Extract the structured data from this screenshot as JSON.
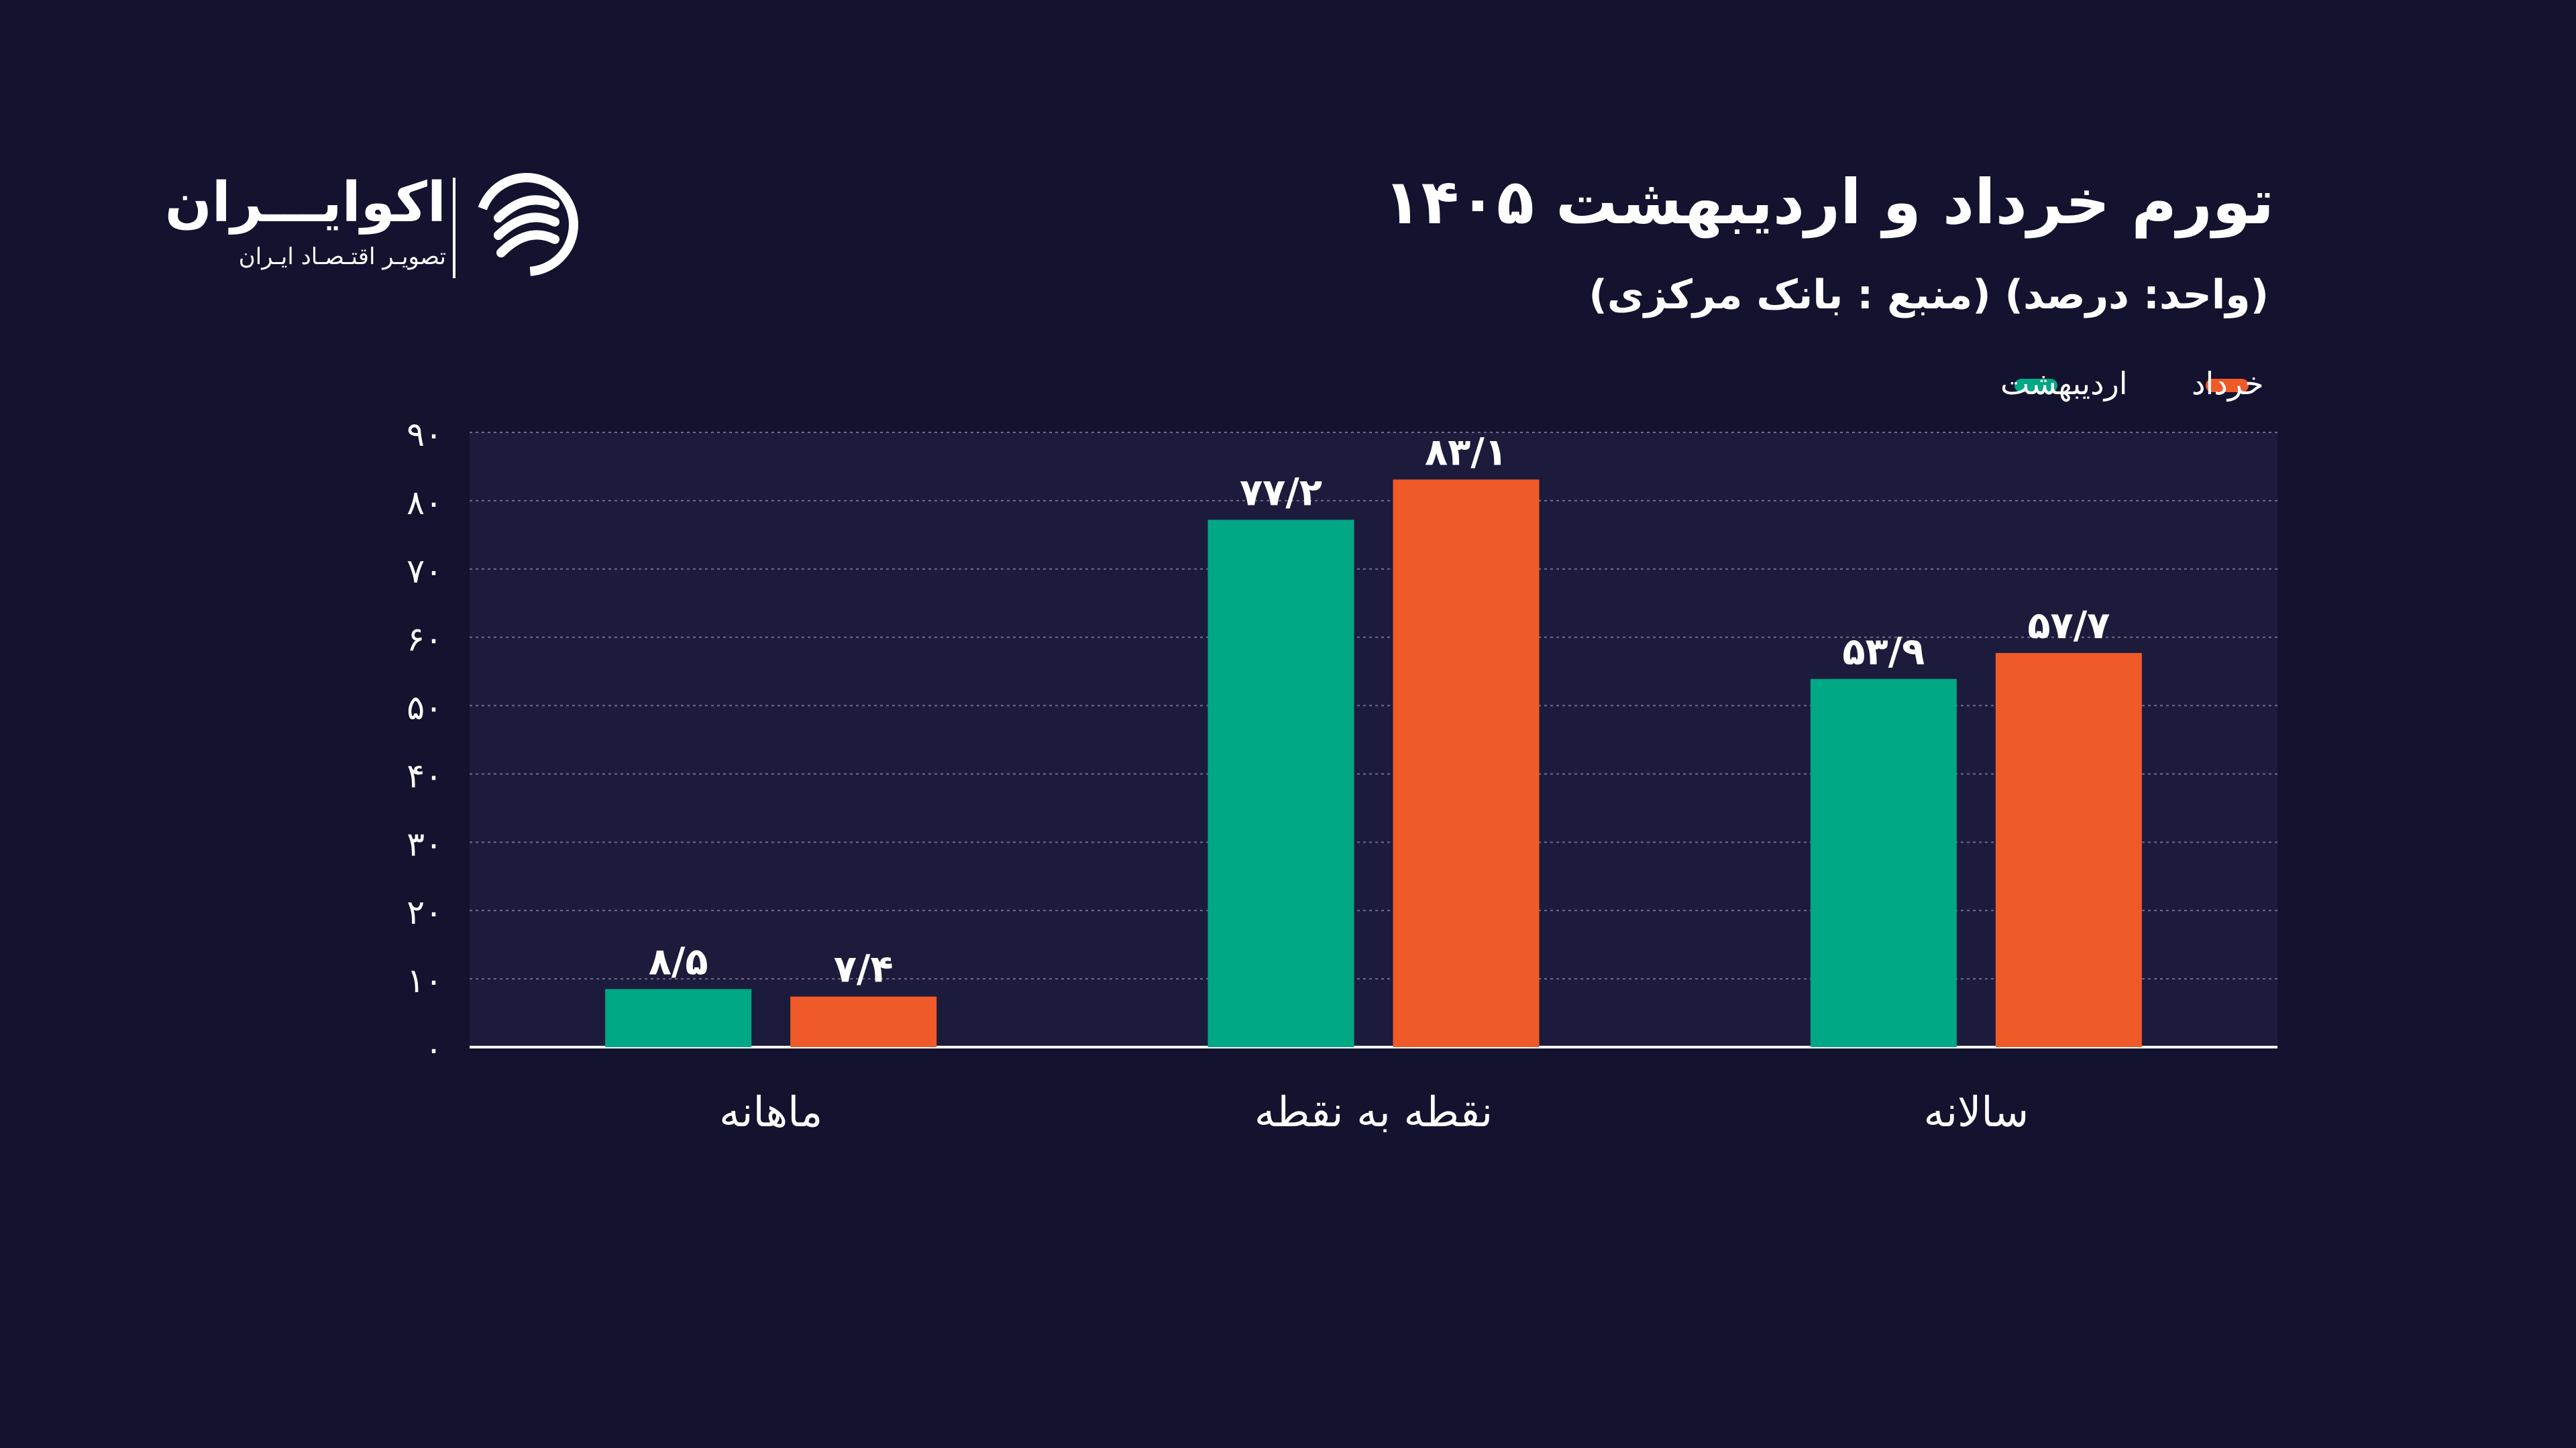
{
  "header": {
    "title": "تورم خرداد و اردیبهشت ۱۴۰۵",
    "subtitle": "(واحد: درصد) (منبع : بانک مرکزی)"
  },
  "logo": {
    "name": "اکوایـــران",
    "tagline": "تصویـر اقتـصـاد ایـران"
  },
  "colors": {
    "background": "#13122f",
    "plot_background": "#1d1b3c",
    "ordibehesht": "#00a886",
    "khordad": "#f05a28"
  },
  "chart_data": {
    "type": "bar",
    "categories": [
      "ماهانه",
      "نقطه به نقطه",
      "سالانه"
    ],
    "series": [
      {
        "name": "اردیبهشت",
        "color": "#00a886",
        "values": [
          8.5,
          77.2,
          53.9
        ],
        "labels": [
          "۸/۵",
          "۷۷/۲",
          "۵۳/۹"
        ]
      },
      {
        "name": "خرداد",
        "color": "#f05a28",
        "values": [
          7.4,
          83.1,
          57.7
        ],
        "labels": [
          "۷/۴",
          "۸۳/۱",
          "۵۷/۷"
        ]
      }
    ],
    "ylim": [
      0,
      90
    ],
    "yticks": [
      0,
      10,
      20,
      30,
      40,
      50,
      60,
      70,
      80,
      90
    ],
    "ytick_labels": [
      "۰",
      "۱۰",
      "۲۰",
      "۳۰",
      "۴۰",
      "۵۰",
      "۶۰",
      "۷۰",
      "۸۰",
      "۹۰"
    ],
    "grid": true,
    "legend_position": "top-right"
  }
}
